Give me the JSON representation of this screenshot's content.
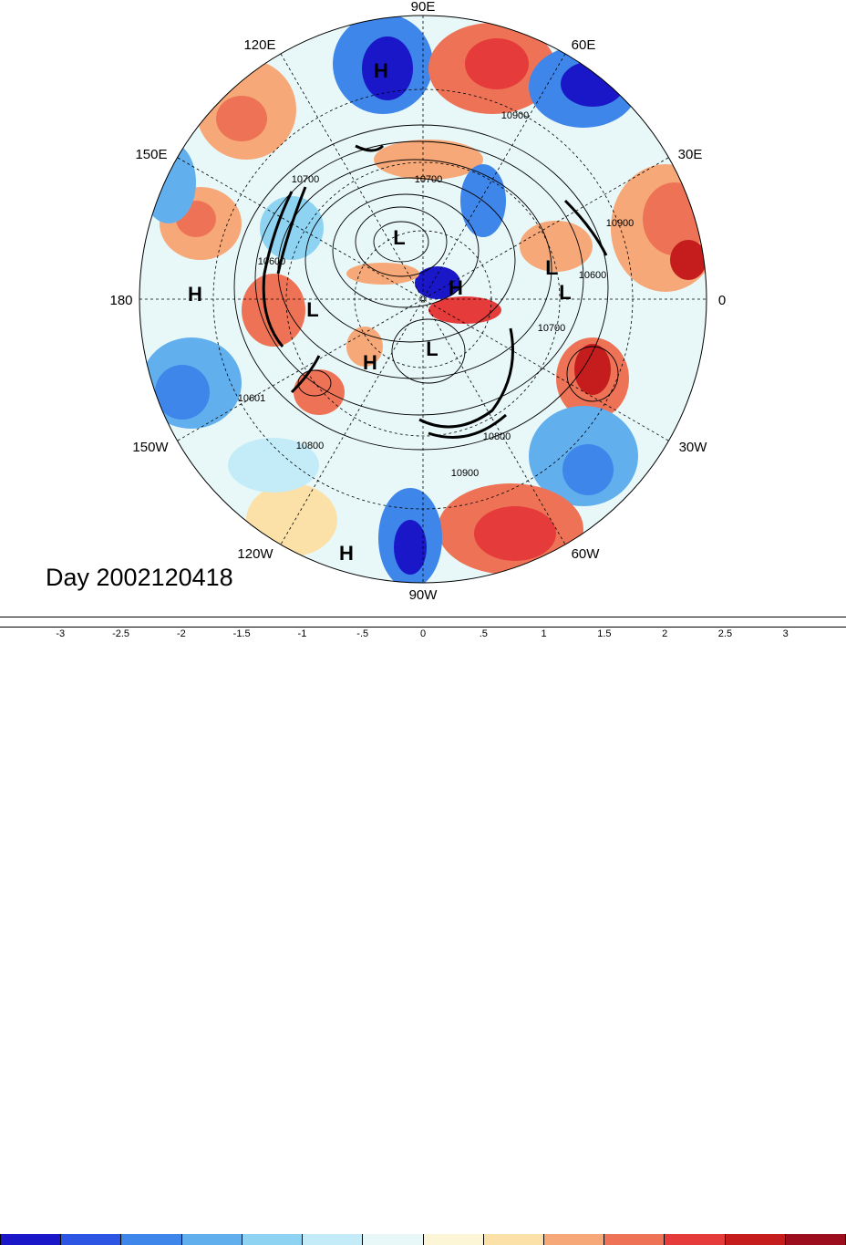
{
  "title": "Day 2002120418",
  "longitude_labels": [
    "90E",
    "60E",
    "30E",
    "0",
    "30W",
    "60W",
    "90W",
    "120W",
    "150W",
    "180",
    "150E",
    "120E"
  ],
  "pressure_centers": [
    {
      "type": "H"
    },
    {
      "type": "L"
    },
    {
      "type": "H"
    },
    {
      "type": "L"
    },
    {
      "type": "L"
    },
    {
      "type": "H"
    },
    {
      "type": "H"
    },
    {
      "type": "L"
    },
    {
      "type": "H"
    },
    {
      "type": "L"
    }
  ],
  "contour_labels": [
    "10900",
    "10700",
    "10600",
    "10900",
    "10600",
    "10700",
    "10800",
    "10800",
    "10900",
    "10601",
    "10700"
  ],
  "colorbar": {
    "tick_labels": [
      "-3",
      "-2.5",
      "-2",
      "-1.5",
      "-1",
      "-.5",
      "0",
      ".5",
      "1",
      "1.5",
      "2",
      "2.5",
      "3"
    ],
    "colors": [
      "#1a17c9",
      "#2d55e4",
      "#3f86ea",
      "#62afed",
      "#8fd3f3",
      "#c3ecf8",
      "#e8f8f8",
      "#fcf6d6",
      "#fbe1a7",
      "#f6a878",
      "#ee7356",
      "#e63b3b",
      "#c51d1d",
      "#9c0e1e"
    ]
  }
}
